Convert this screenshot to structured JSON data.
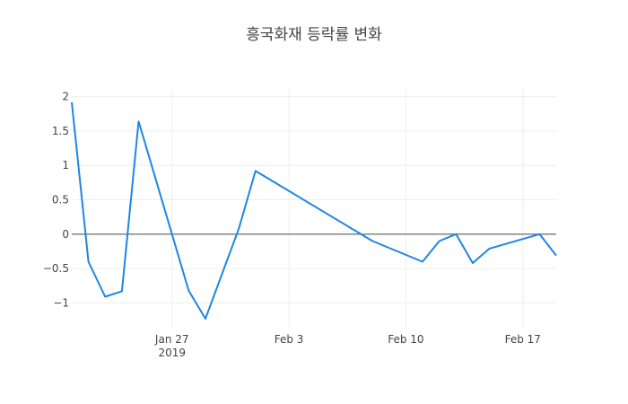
{
  "chart_data": {
    "type": "line",
    "title": "흥국화재 등락률 변화",
    "x": [
      "2019-01-21",
      "2019-01-22",
      "2019-01-23",
      "2019-01-24",
      "2019-01-25",
      "2019-01-28",
      "2019-01-29",
      "2019-01-31",
      "2019-02-01",
      "2019-02-08",
      "2019-02-11",
      "2019-02-12",
      "2019-02-13",
      "2019-02-14",
      "2019-02-15",
      "2019-02-18",
      "2019-02-19"
    ],
    "series": [
      {
        "name": "등락률",
        "color": "#1f85e6",
        "values": [
          1.92,
          -0.4,
          -0.91,
          -0.83,
          1.64,
          -0.82,
          -1.23,
          0.08,
          0.92,
          -0.1,
          -0.4,
          -0.1,
          0,
          -0.42,
          -0.21,
          0,
          -0.31
        ]
      }
    ],
    "xlim": [
      "2019-01-21",
      "2019-02-19"
    ],
    "xticks": [
      {
        "value": "2019-01-27",
        "label": "Jan 27\n2019"
      },
      {
        "value": "2019-02-03",
        "label": "Feb 3"
      },
      {
        "value": "2019-02-10",
        "label": "Feb 10"
      },
      {
        "value": "2019-02-17",
        "label": "Feb 17"
      }
    ],
    "ylim": [
      -1.36,
      2.1
    ],
    "yticks": [
      {
        "value": -1,
        "label": "−1"
      },
      {
        "value": -0.5,
        "label": "−0.5"
      },
      0,
      0.5,
      1,
      1.5,
      2
    ],
    "grid": true,
    "zeroline": true
  }
}
